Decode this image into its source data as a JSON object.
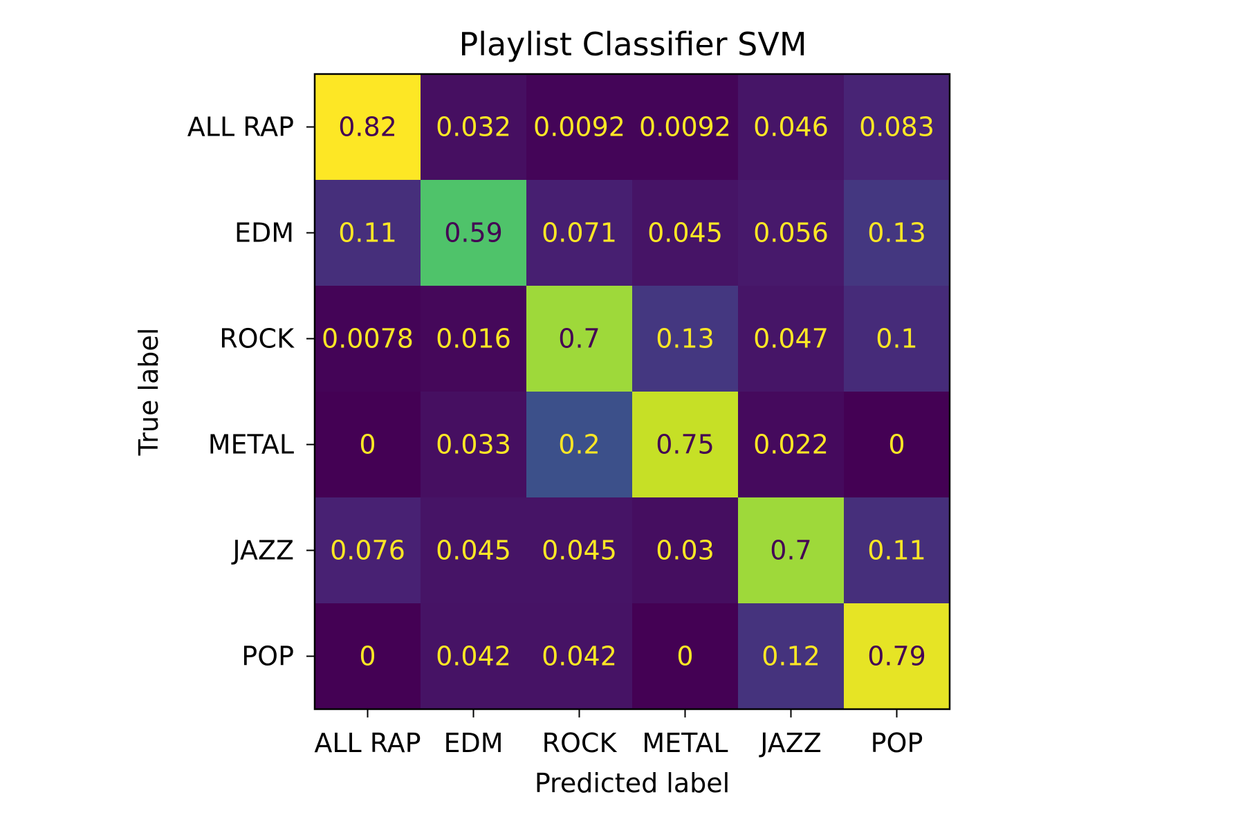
{
  "chart_data": {
    "type": "heatmap",
    "title": "Playlist Classifier SVM",
    "xlabel": "Predicted label",
    "ylabel": "True label",
    "x_categories": [
      "ALL RAP",
      "EDM",
      "ROCK",
      "METAL",
      "JAZZ",
      "POP"
    ],
    "y_categories": [
      "ALL RAP",
      "EDM",
      "ROCK",
      "METAL",
      "JAZZ",
      "POP"
    ],
    "cell_labels": [
      [
        "0.82",
        "0.032",
        "0.0092",
        "0.0092",
        "0.046",
        "0.083"
      ],
      [
        "0.11",
        "0.59",
        "0.071",
        "0.045",
        "0.056",
        "0.13"
      ],
      [
        "0.0078",
        "0.016",
        "0.7",
        "0.13",
        "0.047",
        "0.1"
      ],
      [
        "0",
        "0.033",
        "0.2",
        "0.75",
        "0.022",
        "0"
      ],
      [
        "0.076",
        "0.045",
        "0.045",
        "0.03",
        "0.7",
        "0.11"
      ],
      [
        "0",
        "0.042",
        "0.042",
        "0",
        "0.12",
        "0.79"
      ]
    ],
    "values": [
      [
        0.82,
        0.032,
        0.0092,
        0.0092,
        0.046,
        0.083
      ],
      [
        0.11,
        0.59,
        0.071,
        0.045,
        0.056,
        0.13
      ],
      [
        0.0078,
        0.016,
        0.7,
        0.13,
        0.047,
        0.1
      ],
      [
        0,
        0.033,
        0.2,
        0.75,
        0.022,
        0
      ],
      [
        0.076,
        0.045,
        0.045,
        0.03,
        0.7,
        0.11
      ],
      [
        0,
        0.042,
        0.042,
        0,
        0.12,
        0.79
      ]
    ],
    "vmin": 0,
    "vmax": 0.82,
    "colormap": "viridis",
    "text_color_dark": "#440154",
    "text_color_light": "#fde725",
    "grid": false,
    "legend": "none"
  }
}
